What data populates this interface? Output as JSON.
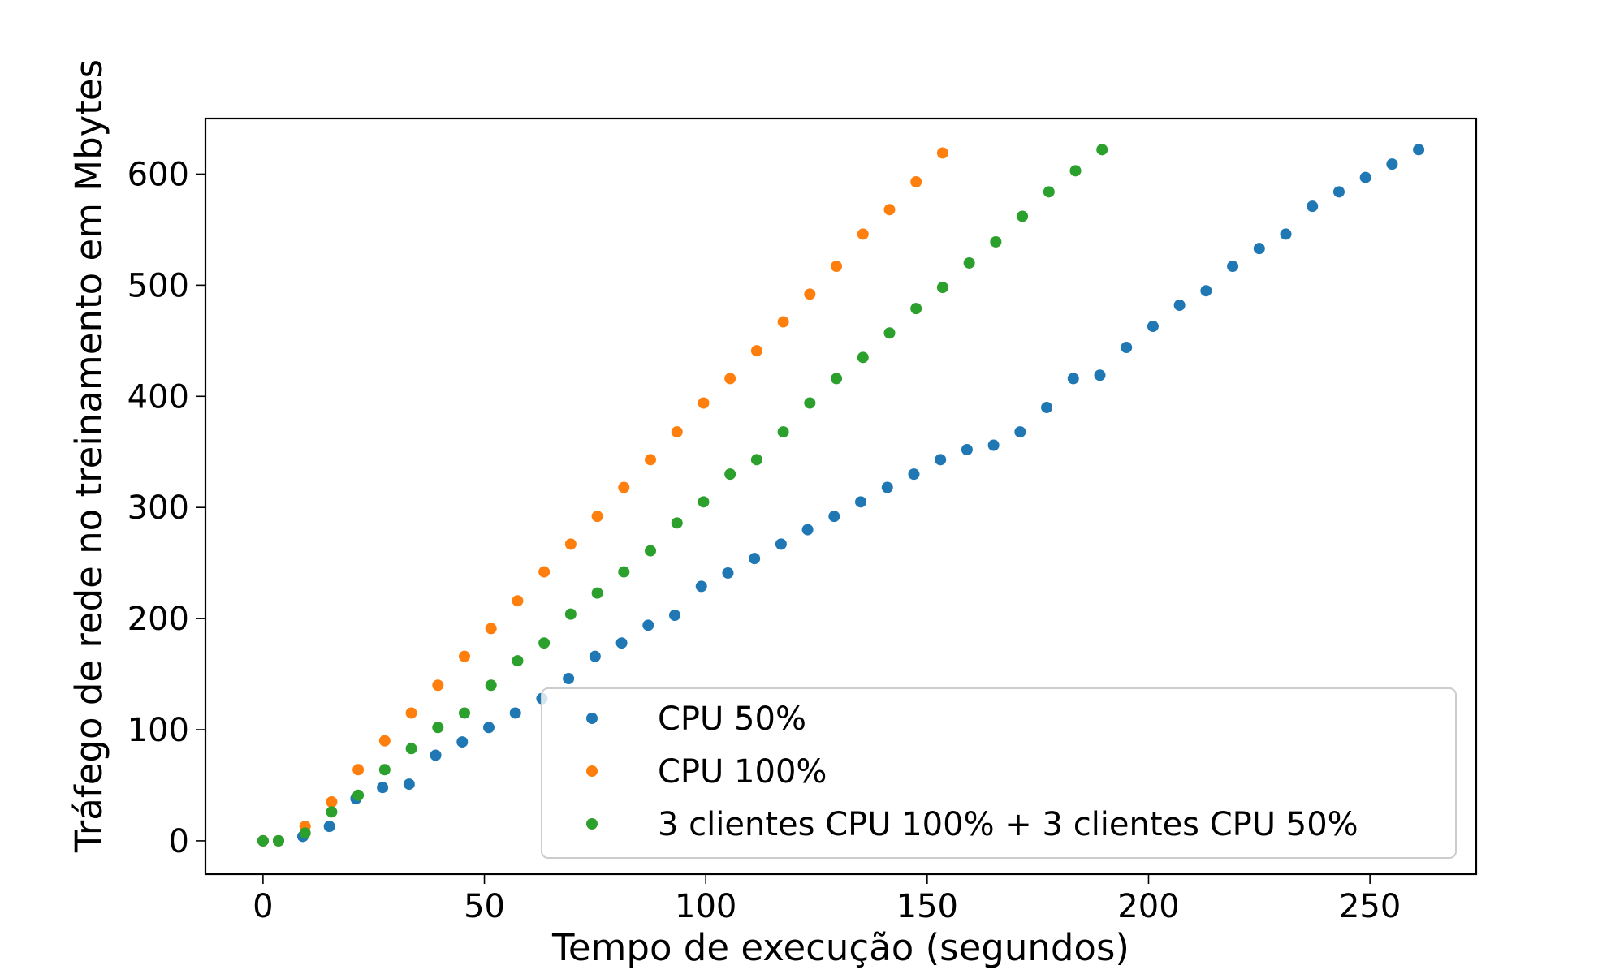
{
  "chart_data": {
    "type": "scatter",
    "xlabel": "Tempo de execução (segundos)",
    "ylabel": "Tráfego de rede no treinamento em Mbytes",
    "xlim": [
      -13,
      274
    ],
    "ylim": [
      -30,
      650
    ],
    "xticks": [
      0,
      50,
      100,
      150,
      200,
      250
    ],
    "yticks": [
      0,
      100,
      200,
      300,
      400,
      500,
      600
    ],
    "grid": false,
    "legend_position": "lower-right",
    "series": [
      {
        "name": "CPU 50%",
        "color": "#1f77b4",
        "points": [
          [
            0,
            0
          ],
          [
            3.5,
            0
          ],
          [
            9,
            4
          ],
          [
            15,
            13
          ],
          [
            21,
            38
          ],
          [
            27,
            48
          ],
          [
            33,
            51
          ],
          [
            39,
            77
          ],
          [
            45,
            89
          ],
          [
            51,
            102
          ],
          [
            57,
            115
          ],
          [
            63,
            128
          ],
          [
            69,
            146
          ],
          [
            75,
            166
          ],
          [
            81,
            178
          ],
          [
            87,
            194
          ],
          [
            93,
            203
          ],
          [
            99,
            229
          ],
          [
            105,
            241
          ],
          [
            111,
            254
          ],
          [
            117,
            267
          ],
          [
            123,
            280
          ],
          [
            129,
            292
          ],
          [
            135,
            305
          ],
          [
            141,
            318
          ],
          [
            147,
            330
          ],
          [
            153,
            343
          ],
          [
            159,
            352
          ],
          [
            165,
            356
          ],
          [
            171,
            368
          ],
          [
            177,
            390
          ],
          [
            183,
            416
          ],
          [
            189,
            419
          ],
          [
            195,
            444
          ],
          [
            201,
            463
          ],
          [
            207,
            482
          ],
          [
            213,
            495
          ],
          [
            219,
            517
          ],
          [
            225,
            533
          ],
          [
            231,
            546
          ],
          [
            237,
            571
          ],
          [
            243,
            584
          ],
          [
            249,
            597
          ],
          [
            255,
            609
          ],
          [
            261,
            622
          ]
        ]
      },
      {
        "name": "CPU 100%",
        "color": "#ff7f0e",
        "points": [
          [
            0,
            0
          ],
          [
            3.5,
            0
          ],
          [
            9.5,
            13
          ],
          [
            15.5,
            35
          ],
          [
            21.5,
            64
          ],
          [
            27.5,
            90
          ],
          [
            33.5,
            115
          ],
          [
            39.5,
            140
          ],
          [
            45.5,
            166
          ],
          [
            51.5,
            191
          ],
          [
            57.5,
            216
          ],
          [
            63.5,
            242
          ],
          [
            69.5,
            267
          ],
          [
            75.5,
            292
          ],
          [
            81.5,
            318
          ],
          [
            87.5,
            343
          ],
          [
            93.5,
            368
          ],
          [
            99.5,
            394
          ],
          [
            105.5,
            416
          ],
          [
            111.5,
            441
          ],
          [
            117.5,
            467
          ],
          [
            123.5,
            492
          ],
          [
            129.5,
            517
          ],
          [
            135.5,
            546
          ],
          [
            141.5,
            568
          ],
          [
            147.5,
            593
          ],
          [
            153.5,
            619
          ]
        ]
      },
      {
        "name": "3 clientes CPU 100% + 3 clientes CPU 50%",
        "color": "#2ca02c",
        "points": [
          [
            0,
            0
          ],
          [
            3.5,
            0
          ],
          [
            9.5,
            7
          ],
          [
            15.5,
            26
          ],
          [
            21.5,
            41
          ],
          [
            27.5,
            64
          ],
          [
            33.5,
            83
          ],
          [
            39.5,
            102
          ],
          [
            45.5,
            115
          ],
          [
            51.5,
            140
          ],
          [
            57.5,
            162
          ],
          [
            63.5,
            178
          ],
          [
            69.5,
            204
          ],
          [
            75.5,
            223
          ],
          [
            81.5,
            242
          ],
          [
            87.5,
            261
          ],
          [
            93.5,
            286
          ],
          [
            99.5,
            305
          ],
          [
            105.5,
            330
          ],
          [
            111.5,
            343
          ],
          [
            117.5,
            368
          ],
          [
            123.5,
            394
          ],
          [
            129.5,
            416
          ],
          [
            135.5,
            435
          ],
          [
            141.5,
            457
          ],
          [
            147.5,
            479
          ],
          [
            153.5,
            498
          ],
          [
            159.5,
            520
          ],
          [
            165.5,
            539
          ],
          [
            171.5,
            562
          ],
          [
            177.5,
            584
          ],
          [
            183.5,
            603
          ],
          [
            189.5,
            622
          ]
        ]
      }
    ]
  }
}
